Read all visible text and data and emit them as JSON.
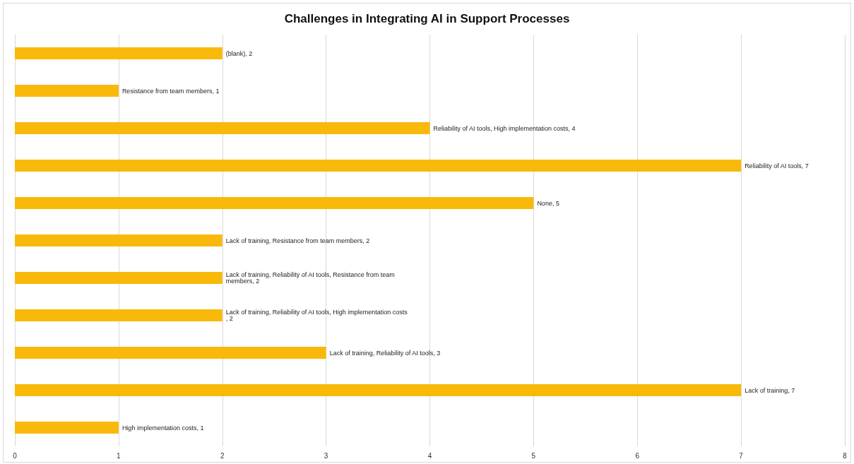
{
  "chart_data": {
    "type": "bar",
    "orientation": "horizontal",
    "title": "Challenges in Integrating AI in Support Processes",
    "categories": [
      null,
      null,
      null,
      null,
      null,
      null,
      null,
      null,
      null,
      null,
      null
    ],
    "values": [
      2,
      1,
      4,
      7,
      5,
      2,
      2,
      2,
      3,
      7,
      1
    ],
    "value_labels": [
      "(blank), 2",
      "Resistance from team members, 1",
      "Reliability of AI tools, High implementation costs, 4",
      "Reliability of AI tools, 7",
      "None, 5",
      "Lack of training, Resistance from team members, 2",
      "Lack of training, Reliability of AI tools, Resistance from team members, 2",
      "Lack of training, Reliability of AI tools, High implementation costs, 2",
      "Lack of training, Reliability of AI tools, 3",
      "Lack of training, 7",
      "High implementation costs, 1"
    ],
    "color": "#f9b90a",
    "xlim": [
      0,
      8
    ],
    "xticks": [
      0,
      1,
      2,
      3,
      4,
      5,
      6,
      7,
      8
    ],
    "grid": "x",
    "tick_labels": "x"
  }
}
